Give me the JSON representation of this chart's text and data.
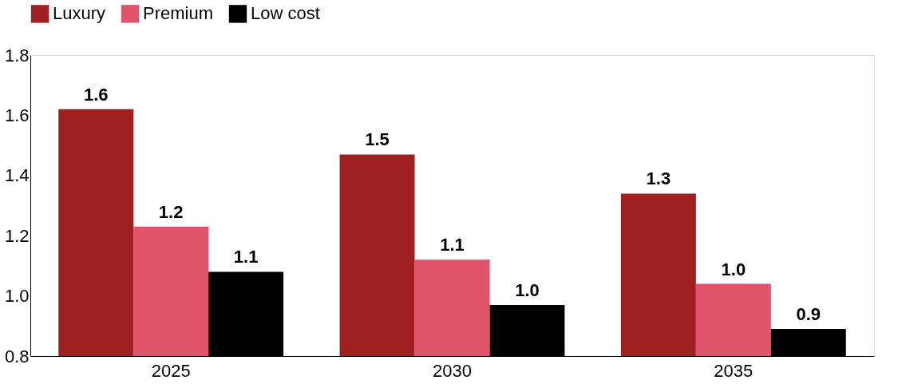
{
  "chart_data": {
    "type": "bar",
    "categories": [
      "2025",
      "2030",
      "2035"
    ],
    "series": [
      {
        "name": "Luxury",
        "color": "#a01f20",
        "values": [
          1.62,
          1.47,
          1.34
        ],
        "value_labels": [
          "1.6",
          "1.5",
          "1.3"
        ]
      },
      {
        "name": "Premium",
        "color": "#e0546a",
        "values": [
          1.23,
          1.12,
          1.04
        ],
        "value_labels": [
          "1.2",
          "1.1",
          "1.0"
        ]
      },
      {
        "name": "Low cost",
        "color": "#000000",
        "values": [
          1.08,
          0.97,
          0.89
        ],
        "value_labels": [
          "1.1",
          "1.0",
          "0.9"
        ]
      }
    ],
    "ylim": [
      0.8,
      1.8
    ],
    "yticks": [
      "1.8",
      "1.6",
      "1.4",
      "1.2",
      "1.0",
      "0.8"
    ],
    "grid": false,
    "legend": "top"
  }
}
